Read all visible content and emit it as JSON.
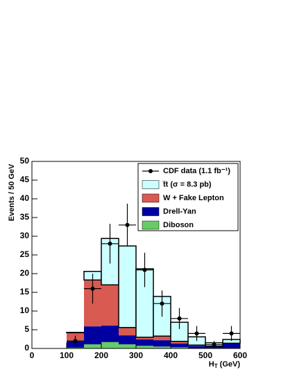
{
  "chart_data": {
    "type": "histogram",
    "ylabel": "Events / 50 GeV",
    "xlabel": [
      "H",
      "T",
      " (GeV)"
    ],
    "bins": [
      0,
      50,
      100,
      150,
      200,
      250,
      300,
      350,
      400,
      450,
      500,
      550,
      600
    ],
    "series": [
      {
        "name": "Diboson",
        "color": "#66cc66",
        "values": [
          0,
          0,
          0.2,
          1.1,
          1.7,
          1.1,
          0.7,
          0.5,
          0.3,
          0.1,
          0.1,
          0.1
        ]
      },
      {
        "name": "Drell-Yan",
        "color": "#0000a0",
        "values": [
          0,
          0,
          1.7,
          4.8,
          4.4,
          2.4,
          1.7,
          1.7,
          1.0,
          0.6,
          0.4,
          1.2
        ]
      },
      {
        "name": "W + Fake Lepton",
        "color": "#d85a50",
        "values": [
          0,
          0,
          2.3,
          12.4,
          10.9,
          2.1,
          0.6,
          1.1,
          0.6,
          0.2,
          0.1,
          0.1
        ]
      },
      {
        "name": "t̅t (σ = 8.3 pb)",
        "color": "#ccffff",
        "values": [
          0,
          0,
          0.1,
          2.3,
          12.4,
          21.8,
          18.3,
          10.6,
          5.1,
          2.2,
          0.9,
          1.0
        ]
      }
    ],
    "data": {
      "name": "CDF data (1.1 fb⁻¹)",
      "color": "#000000",
      "x": [
        125,
        175,
        225,
        275,
        325,
        375,
        425,
        475,
        525,
        575
      ],
      "values": [
        2,
        16,
        28,
        33,
        21,
        12,
        8,
        4,
        1,
        4
      ],
      "errors": [
        1.4,
        4,
        5.3,
        5.7,
        4.6,
        3.5,
        2.8,
        2,
        1,
        2
      ]
    },
    "xlim": [
      0,
      600
    ],
    "xticks": [
      0,
      100,
      200,
      300,
      400,
      500,
      600
    ],
    "ylim": [
      0,
      50
    ],
    "yticks": [
      0,
      5,
      10,
      15,
      20,
      25,
      30,
      35,
      40,
      45,
      50
    ],
    "legend": "upper right"
  }
}
